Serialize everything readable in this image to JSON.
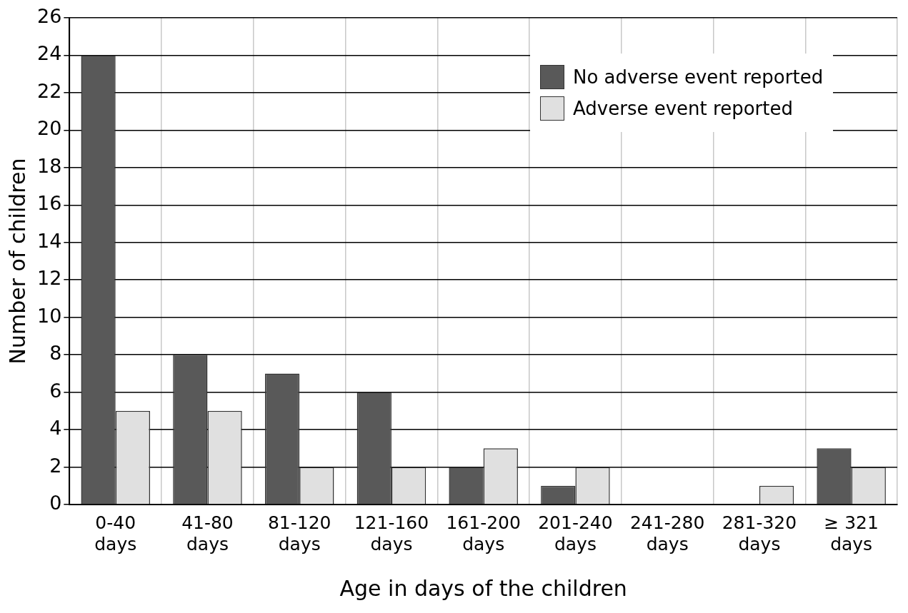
{
  "chart_data": {
    "type": "bar",
    "xlabel": "Age in days of the children",
    "ylabel": "Number of children",
    "categories": [
      "0-40 days",
      "41-80 days",
      "81-120 days",
      "121-160 days",
      "161-200 days",
      "201-240 days",
      "241-280 days",
      "281-320 days",
      "≥ 321 days"
    ],
    "series": [
      {
        "name": "No adverse event reported",
        "color": "#595959",
        "values": [
          24,
          8,
          7,
          6,
          2,
          1,
          0,
          0,
          3
        ]
      },
      {
        "name": "Adverse event reported",
        "color": "#e0e0e0",
        "values": [
          5,
          5,
          2,
          2,
          3,
          2,
          0,
          1,
          2
        ]
      }
    ],
    "ylim": [
      0,
      26
    ],
    "yticks": [
      0,
      2,
      4,
      6,
      8,
      10,
      12,
      14,
      16,
      18,
      20,
      22,
      24,
      26
    ],
    "grid": true,
    "legend": "top right"
  }
}
